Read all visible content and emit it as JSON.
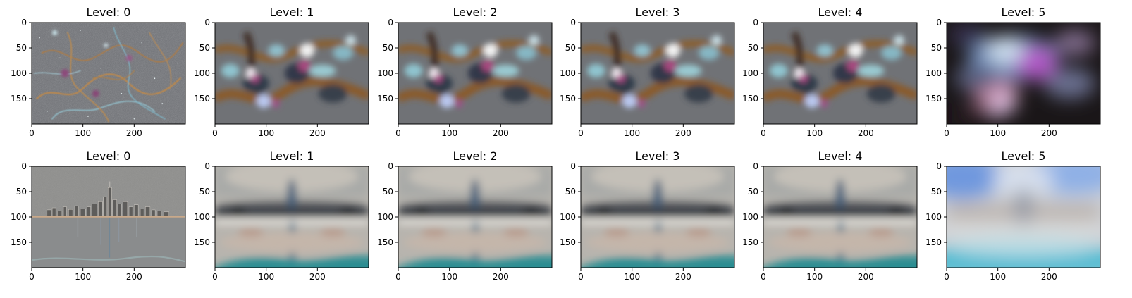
{
  "chart_data": {
    "type": "image-grid",
    "rows": 2,
    "cols": 6,
    "image_size": {
      "width": 300,
      "height": 200
    },
    "xticks": [
      0,
      100,
      200
    ],
    "yticks": [
      0,
      50,
      100,
      150
    ],
    "panels": [
      {
        "title": "Level: 0",
        "palette": "nebula-detail"
      },
      {
        "title": "Level: 1",
        "palette": "nebula-blur"
      },
      {
        "title": "Level: 2",
        "palette": "nebula-blur"
      },
      {
        "title": "Level: 3",
        "palette": "nebula-blur"
      },
      {
        "title": "Level: 4",
        "palette": "nebula-blur"
      },
      {
        "title": "Level: 5",
        "palette": "nebula-smooth"
      },
      {
        "title": "Level: 0",
        "palette": "skyline-detail"
      },
      {
        "title": "Level: 1",
        "palette": "skyline-blur"
      },
      {
        "title": "Level: 2",
        "palette": "skyline-blur"
      },
      {
        "title": "Level: 3",
        "palette": "skyline-blur"
      },
      {
        "title": "Level: 4",
        "palette": "skyline-blur"
      },
      {
        "title": "Level: 5",
        "palette": "skyline-smooth"
      }
    ]
  }
}
